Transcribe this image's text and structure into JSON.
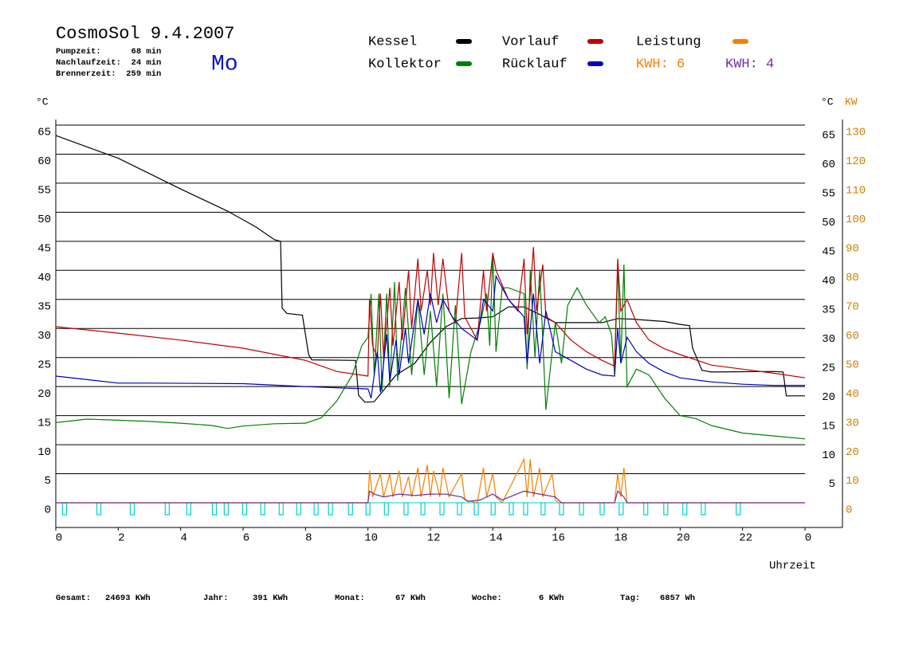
{
  "chart_data": {
    "type": "line",
    "title": "CosmoSol 9.4.2007",
    "day": "Mo",
    "info": [
      "Pumpzeit:      68 min",
      "Nachlaufzeit:  24 min",
      "Brennerzeit:  259 min"
    ],
    "y_label": "°C",
    "y2_label": "KW",
    "x_label": "Uhrzeit",
    "xlim": [
      0,
      24
    ],
    "xticks": [
      0,
      2,
      4,
      6,
      8,
      10,
      12,
      14,
      16,
      18,
      20,
      22,
      {
        "value": 24,
        "label": "0"
      }
    ],
    "ylim": [
      0,
      65
    ],
    "yticks": [
      0,
      5,
      10,
      15,
      20,
      25,
      30,
      35,
      40,
      45,
      50,
      55,
      60,
      65
    ],
    "yticks_right": [
      5,
      10,
      15,
      20,
      25,
      30,
      35,
      40,
      45,
      50,
      55,
      60,
      65
    ],
    "y2lim": [
      0,
      130
    ],
    "y2ticks": [
      0,
      10,
      20,
      30,
      40,
      50,
      60,
      70,
      80,
      90,
      100,
      110,
      120,
      130
    ],
    "grid": true,
    "series": [
      {
        "name": "Kessel",
        "color": "#000000",
        "x": [
          0,
          2,
          4,
          5.5,
          6.4,
          7.0,
          7.2,
          7.25,
          7.4,
          7.9,
          8.1,
          8.2,
          9.6,
          9.7,
          9.9,
          10.2,
          10.4,
          10.9,
          11.5,
          12,
          12.5,
          13,
          13.5,
          14,
          14.5,
          15,
          15.5,
          16,
          16.5,
          17.5,
          18,
          18.5,
          19.5,
          20,
          20.3,
          20.4,
          20.7,
          21,
          23,
          23.3,
          23.4,
          24
        ],
        "values": [
          63.2,
          59.3,
          54,
          50.2,
          47.5,
          45.3,
          45,
          33.5,
          32.6,
          32.3,
          25.5,
          24.6,
          24.5,
          18.5,
          17.3,
          17.4,
          18.7,
          22,
          24,
          27.6,
          30.3,
          31.7,
          31.8,
          32,
          33.7,
          33.7,
          32.4,
          31,
          31,
          31,
          31.7,
          31.6,
          31.2,
          30.7,
          30.5,
          26.6,
          22.8,
          22.5,
          22.6,
          22.5,
          18.4,
          18.4
        ]
      },
      {
        "name": "Kollektor",
        "color": "#008000",
        "x": [
          0,
          1,
          2,
          3,
          4,
          5,
          5.5,
          6,
          7,
          8,
          8.5,
          9,
          9.5,
          9.8,
          10,
          10.1,
          10.2,
          10.35,
          10.45,
          10.6,
          10.7,
          10.85,
          10.95,
          11.2,
          11.4,
          11.6,
          11.8,
          12,
          12.2,
          12.4,
          12.6,
          12.8,
          13,
          13.3,
          13.6,
          13.8,
          13.9,
          14,
          14.1,
          14.3,
          14.5,
          15,
          15.1,
          15.2,
          15.35,
          15.5,
          15.7,
          16,
          16.2,
          16.4,
          16.7,
          17,
          17.4,
          17.6,
          17.8,
          17.9,
          18.0,
          18.1,
          18.2,
          18.3,
          18.6,
          19,
          19.5,
          20,
          20.5,
          21,
          22,
          23,
          24
        ],
        "values": [
          13.8,
          14.4,
          14.2,
          14.0,
          13.7,
          13.3,
          12.8,
          13.2,
          13.6,
          13.7,
          14.6,
          17.5,
          22,
          27,
          28.5,
          36,
          22,
          36,
          19,
          36,
          20,
          38,
          21,
          37,
          22,
          35,
          22,
          33,
          20,
          36,
          18,
          34,
          17,
          26,
          31,
          36,
          27,
          43,
          26,
          37,
          37,
          36,
          23,
          40,
          25,
          40,
          16,
          31,
          24,
          34,
          37,
          34,
          31,
          32,
          29,
          22,
          41,
          24,
          41,
          20,
          23,
          22,
          18,
          15,
          14.5,
          13.3,
          12,
          11.5,
          11
        ]
      },
      {
        "name": "Vorlauf",
        "color": "#c00000",
        "x": [
          0,
          2,
          4,
          6,
          8,
          9,
          10,
          10.05,
          10.15,
          10.3,
          10.4,
          10.5,
          10.7,
          10.8,
          11,
          11.1,
          11.3,
          11.4,
          11.6,
          11.7,
          11.9,
          12,
          12.1,
          12.25,
          12.4,
          12.6,
          12.8,
          13,
          13.1,
          13.5,
          13.7,
          13.8,
          14,
          14.1,
          14.5,
          14.8,
          15,
          15.1,
          15.3,
          15.4,
          15.6,
          15.7,
          16,
          16.5,
          17,
          17.5,
          17.9,
          18,
          18.1,
          18.3,
          18.6,
          19,
          19.5,
          20,
          21,
          22,
          23,
          24
        ],
        "values": [
          30.3,
          29.2,
          28,
          26.6,
          24.5,
          22.6,
          21.8,
          35,
          27,
          25,
          36,
          25,
          37,
          27,
          38,
          28,
          40,
          30,
          42,
          33,
          40,
          34,
          43,
          34,
          42,
          33,
          31,
          43,
          32,
          28,
          40,
          33,
          43,
          40,
          35,
          33,
          42,
          29,
          44,
          33,
          41,
          32,
          31,
          28,
          26,
          24.5,
          23.5,
          42,
          33,
          35,
          31,
          28,
          26.5,
          25.5,
          23.7,
          23,
          22.3,
          21.5
        ]
      },
      {
        "name": "Rücklauf",
        "color": "#0000c0",
        "x": [
          0,
          1,
          2,
          3,
          6,
          8,
          9,
          10,
          10.1,
          10.3,
          10.4,
          10.6,
          10.7,
          10.9,
          11,
          11.2,
          11.3,
          11.6,
          11.8,
          12,
          12.2,
          12.4,
          12.7,
          13,
          13.5,
          13.7,
          14,
          14.1,
          14.5,
          15,
          15.1,
          15.3,
          15.5,
          15.7,
          16,
          16.5,
          17,
          17.5,
          17.9,
          18,
          18.1,
          18.3,
          18.6,
          19,
          19.5,
          20,
          21,
          22,
          23,
          24
        ],
        "values": [
          21.8,
          21.2,
          20.6,
          20.6,
          20.5,
          20,
          19.8,
          19.6,
          18,
          26,
          19,
          29,
          21,
          28,
          22,
          30,
          24,
          35,
          29,
          36,
          31,
          35,
          32,
          30,
          28,
          35,
          33,
          39,
          35,
          32,
          24,
          36,
          24,
          33,
          26,
          24.5,
          23,
          22,
          21.8,
          30,
          24,
          28.5,
          26,
          24,
          22.5,
          21.5,
          20.8,
          20.4,
          20.2,
          20.2
        ]
      },
      {
        "name": "Leistung",
        "color": "#f08000",
        "axis": "y2",
        "kwh": "KWH: 6",
        "x": [
          0,
          10,
          10.05,
          10.15,
          10.4,
          10.5,
          10.7,
          10.8,
          11,
          11.1,
          11.3,
          11.4,
          11.6,
          11.7,
          11.9,
          12,
          12.1,
          12.3,
          12.4,
          12.6,
          13,
          13.1,
          13.5,
          13.7,
          13.8,
          14,
          14.1,
          14.3,
          15,
          15.1,
          15.2,
          15.3,
          15.5,
          15.6,
          15.9,
          16,
          16.1,
          17.9,
          18,
          18.1,
          18.2,
          18.3,
          24
        ],
        "values": [
          0,
          0,
          11,
          2,
          10,
          2,
          10,
          2,
          11,
          2,
          9,
          2,
          12,
          2,
          13,
          2,
          11,
          2,
          12,
          2,
          10,
          1,
          0,
          12,
          2,
          10,
          2,
          0,
          15,
          2,
          15,
          2,
          12,
          2,
          10,
          1,
          0,
          0,
          10,
          2,
          12,
          0,
          0
        ]
      },
      {
        "name": "KWH: 4",
        "color": "#7030a0",
        "axis": "y2",
        "x": [
          0,
          10,
          10.05,
          10.2,
          10.5,
          11,
          11.5,
          12,
          12.5,
          13,
          13.2,
          13.6,
          14,
          14.3,
          15,
          15.5,
          16,
          16.2,
          17.9,
          18,
          18.2,
          18.3,
          24
        ],
        "values": [
          0,
          0,
          4,
          3,
          2,
          3,
          2.5,
          3,
          3,
          2,
          0.5,
          1,
          3,
          1,
          4,
          3,
          2,
          0,
          0,
          4,
          2,
          0,
          0
        ]
      }
    ],
    "pump_color": "#00d0d0",
    "pump_pulses": [
      0.28,
      1.38,
      2.45,
      3.57,
      4.26,
      5.08,
      5.46,
      6.05,
      6.63,
      7.22,
      7.78,
      8.34,
      8.8,
      9.44,
      10.0,
      10.59,
      11.22,
      11.76,
      12.37,
      12.93,
      13.47,
      14.01,
      14.59,
      15.05,
      15.61,
      16.2,
      16.84,
      17.5,
      18.11,
      18.9,
      19.54,
      20.15,
      20.74,
      21.86
    ],
    "footer": [
      {
        "label": "Gesamt:",
        "value": "24693 KWh"
      },
      {
        "label": "Jahr:",
        "value": "391 KWh"
      },
      {
        "label": "Monat:",
        "value": "67 KWh"
      },
      {
        "label": "Woche:",
        "value": "6 KWh"
      },
      {
        "label": "Tag:",
        "value": "6857 Wh"
      }
    ]
  }
}
